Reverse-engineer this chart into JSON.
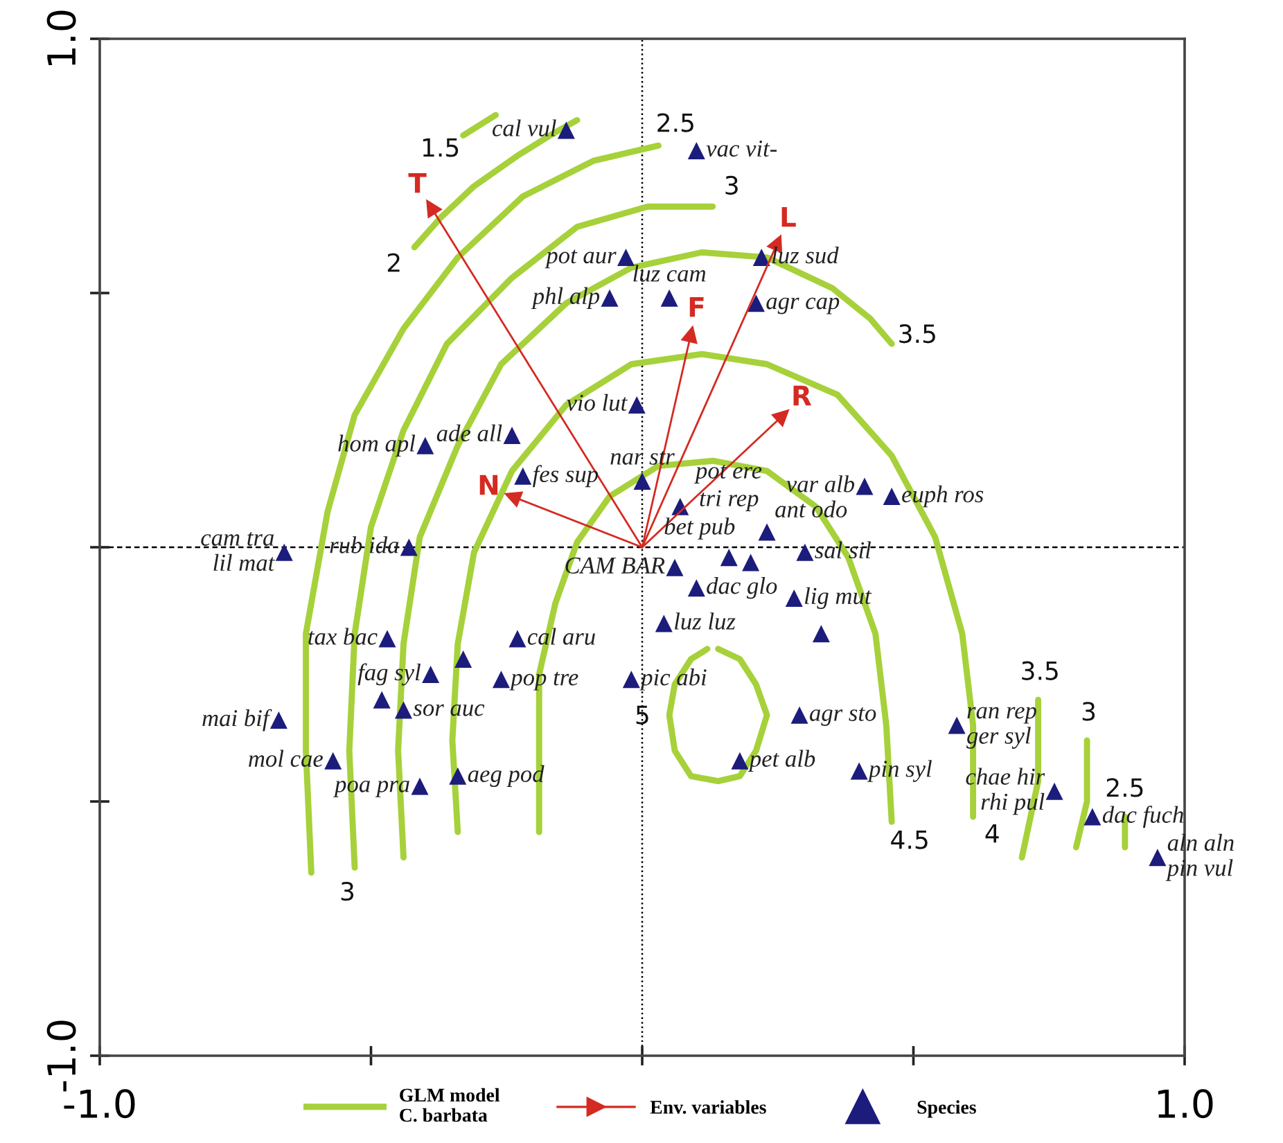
{
  "chart_data": {
    "type": "scatter",
    "xlim": [
      -1,
      1
    ],
    "ylim": [
      -1,
      1
    ],
    "xticks": [
      {
        "value": -1,
        "label": "-1.0"
      },
      {
        "value": -0.5,
        "label": null
      },
      {
        "value": 0,
        "label": null
      },
      {
        "value": 0.5,
        "label": null
      },
      {
        "value": 1,
        "label": "1.0"
      }
    ],
    "yticks": [
      {
        "value": -1,
        "label": "-1.0"
      },
      {
        "value": -0.5,
        "label": null
      },
      {
        "value": 0,
        "label": null
      },
      {
        "value": 0.5,
        "label": null
      },
      {
        "value": 1,
        "label": "1.0"
      }
    ],
    "legend": "bottom",
    "ref_lines": [
      {
        "axis": "x",
        "value": 0,
        "line_style": "dotted",
        "color": "#000000"
      },
      {
        "axis": "y",
        "value": 0,
        "line_style": "dashed",
        "color": "#000000"
      }
    ],
    "series": [
      {
        "name": "GLM model\nC. barbata",
        "type": "line",
        "color": "#a6d13a",
        "x": [
          -0.19,
          -0.19,
          -0.19,
          -0.16,
          -0.12,
          -0.06,
          0.03,
          0.13,
          0.23,
          0.32,
          0.38,
          0.43,
          0.45,
          0.46
        ],
        "values": [
          -0.56,
          -0.4,
          -0.25,
          -0.11,
          0.01,
          0.1,
          0.16,
          0.17,
          0.15,
          0.08,
          -0.02,
          -0.17,
          -0.35,
          -0.54
        ]
      },
      {
        "type": "line",
        "color": "#a6d13a",
        "x": [
          -0.34,
          -0.35,
          -0.34,
          -0.31,
          -0.24,
          -0.14,
          -0.02,
          0.11,
          0.23,
          0.36,
          0.46,
          0.54,
          0.59,
          0.61,
          0.61
        ],
        "values": [
          -0.56,
          -0.38,
          -0.19,
          -0.01,
          0.15,
          0.28,
          0.36,
          0.38,
          0.36,
          0.3,
          0.18,
          0.02,
          -0.17,
          -0.35,
          -0.53
        ]
      },
      {
        "type": "line",
        "color": "#a6d13a",
        "x": [
          -0.44,
          -0.45,
          -0.44,
          -0.41,
          -0.34,
          -0.26,
          -0.14,
          -0.02,
          0.11,
          0.23,
          0.35,
          0.42,
          0.46
        ],
        "values": [
          -0.61,
          -0.4,
          -0.19,
          0.02,
          0.2,
          0.36,
          0.48,
          0.55,
          0.58,
          0.57,
          0.51,
          0.45,
          0.4
        ]
      },
      {
        "type": "line",
        "color": "#a6d13a",
        "x": [
          -0.53,
          -0.54,
          -0.53,
          -0.5,
          -0.44,
          -0.36,
          -0.24,
          -0.12,
          0.01,
          0.13
        ],
        "values": [
          -0.63,
          -0.4,
          -0.17,
          0.04,
          0.23,
          0.4,
          0.53,
          0.63,
          0.67,
          0.67
        ]
      },
      {
        "type": "line",
        "color": "#a6d13a",
        "x": [
          -0.61,
          -0.62,
          -0.62,
          -0.58,
          -0.53,
          -0.44,
          -0.34,
          -0.22,
          -0.09,
          0.03
        ],
        "values": [
          -0.64,
          -0.4,
          -0.17,
          0.07,
          0.26,
          0.43,
          0.57,
          0.69,
          0.76,
          0.79
        ]
      },
      {
        "type": "line",
        "color": "#a6d13a",
        "x": [
          -0.42,
          -0.37,
          -0.31,
          -0.23,
          -0.17,
          -0.12
        ],
        "values": [
          0.59,
          0.65,
          0.71,
          0.77,
          0.81,
          0.84
        ]
      },
      {
        "type": "line",
        "color": "#a6d13a",
        "x": [
          -0.33,
          -0.27
        ],
        "values": [
          0.81,
          0.85
        ]
      },
      {
        "type": "line",
        "color": "#a6d13a",
        "x": [
          0.73,
          0.73,
          0.7
        ],
        "values": [
          -0.3,
          -0.46,
          -0.61
        ]
      },
      {
        "type": "line",
        "color": "#a6d13a",
        "x": [
          0.82,
          0.82,
          0.8
        ],
        "values": [
          -0.38,
          -0.5,
          -0.59
        ]
      },
      {
        "type": "line",
        "color": "#a6d13a",
        "x": [
          0.89,
          0.89
        ],
        "values": [
          -0.53,
          -0.59
        ]
      },
      {
        "type": "line",
        "color": "#a6d13a",
        "x": [
          0.14,
          0.18,
          0.21,
          0.23,
          0.21,
          0.18,
          0.14,
          0.09,
          0.06,
          0.05,
          0.06,
          0.09,
          0.12
        ],
        "values": [
          -0.2,
          -0.22,
          -0.27,
          -0.33,
          -0.4,
          -0.45,
          -0.46,
          -0.45,
          -0.4,
          -0.33,
          -0.27,
          -0.22,
          -0.2
        ]
      },
      {
        "name": "Env. variables",
        "type": "line",
        "marker": "triangle",
        "color": "#d42a22",
        "x": [
          0,
          -0.39
        ],
        "values": [
          0,
          0.67
        ]
      },
      {
        "type": "line",
        "marker": "triangle",
        "color": "#d42a22",
        "x": [
          0,
          -0.24
        ],
        "values": [
          0,
          0.1
        ]
      },
      {
        "type": "line",
        "marker": "triangle",
        "color": "#d42a22",
        "x": [
          0,
          0.09
        ],
        "values": [
          0,
          0.42
        ]
      },
      {
        "type": "line",
        "marker": "triangle",
        "color": "#d42a22",
        "x": [
          0,
          0.25
        ],
        "values": [
          0,
          0.6
        ]
      },
      {
        "type": "line",
        "marker": "triangle",
        "color": "#d42a22",
        "x": [
          0,
          0.26
        ],
        "values": [
          0,
          0.26
        ]
      },
      {
        "name": "Species",
        "marker": "triangle",
        "color": "#1c1c7c",
        "x": [
          -0.14,
          0.1,
          -0.03,
          0.22,
          -0.06,
          0.05,
          0.21,
          -0.01,
          -0.24,
          -0.4,
          -0.22,
          0.0,
          0.07,
          0.41,
          0.46,
          0.23,
          0.3,
          0.16,
          0.2,
          0.06,
          0.1,
          0.28,
          0.33,
          0.04,
          -0.02,
          0.29,
          0.18,
          0.4,
          0.58,
          0.76,
          0.83,
          0.95,
          -0.66,
          -0.43,
          -0.23,
          -0.47,
          -0.33,
          -0.39,
          -0.26,
          -0.48,
          -0.44,
          -0.67,
          -0.57,
          -0.41,
          -0.34
        ],
        "values": [
          0.82,
          0.78,
          0.57,
          0.57,
          0.49,
          0.49,
          0.48,
          0.28,
          0.22,
          0.2,
          0.14,
          0.13,
          0.08,
          0.12,
          0.1,
          0.03,
          -0.01,
          -0.02,
          -0.03,
          -0.04,
          -0.08,
          -0.1,
          -0.17,
          -0.15,
          -0.26,
          -0.33,
          -0.42,
          -0.44,
          -0.35,
          -0.48,
          -0.53,
          -0.61,
          -0.01,
          0.0,
          -0.18,
          -0.18,
          -0.22,
          -0.25,
          -0.26,
          -0.3,
          -0.32,
          -0.34,
          -0.42,
          -0.47,
          -0.45
        ],
        "value_labels": [
          "cal vul",
          "vac vit-",
          "pot aur",
          "luz sud",
          "phl alp",
          "luz cam",
          "agr cap",
          "vio lut",
          "ade all",
          "hom apl",
          "fes sup",
          "nar str",
          "pot ere",
          "var alb",
          "euph ros",
          "ant odo",
          "sal sil",
          "tri rep",
          "bet pub",
          "CAM BAR",
          "dac glo",
          "lig mut",
          null,
          "luz luz",
          "pic abi",
          "agr sto",
          "pet alb",
          "pin syl",
          "ran rep\nger syl",
          "chae hir\nrhi pul",
          "dac fuch",
          "aln aln\npin vul",
          "cam tra\nlil mat",
          "rub ida",
          "cal aru",
          "tax bac",
          null,
          "fag syl",
          "pop tre",
          null,
          "sor auc",
          "mai bif",
          "mol cae",
          "poa pra",
          "aeg pod"
        ]
      }
    ],
    "annotations": [
      {
        "text": "4.5",
        "x": 0.46,
        "y": -0.54
      },
      {
        "text": "4",
        "x": 0.61,
        "y": -0.53
      },
      {
        "text": "3.5",
        "x": 0.46,
        "y": 0.4
      },
      {
        "text": "3",
        "x": -0.53,
        "y": -0.63
      },
      {
        "text": "3",
        "x": 0.13,
        "y": 0.67
      },
      {
        "text": "2.5",
        "x": 0.03,
        "y": 0.79
      },
      {
        "text": "2",
        "x": -0.42,
        "y": 0.59
      },
      {
        "text": "1.5",
        "x": -0.33,
        "y": 0.81
      },
      {
        "text": "3.5",
        "x": 0.73,
        "y": -0.3
      },
      {
        "text": "3",
        "x": 0.82,
        "y": -0.38
      },
      {
        "text": "2.5",
        "x": 0.89,
        "y": -0.53
      },
      {
        "text": "5",
        "x": 0.05,
        "y": -0.33
      },
      {
        "text": "T",
        "x": -0.39,
        "y": 0.67
      },
      {
        "text": "N",
        "x": -0.24,
        "y": 0.1
      },
      {
        "text": "F",
        "x": 0.09,
        "y": 0.42
      },
      {
        "text": "L",
        "x": 0.25,
        "y": 0.6
      },
      {
        "text": "R",
        "x": 0.26,
        "y": 0.26
      }
    ]
  }
}
